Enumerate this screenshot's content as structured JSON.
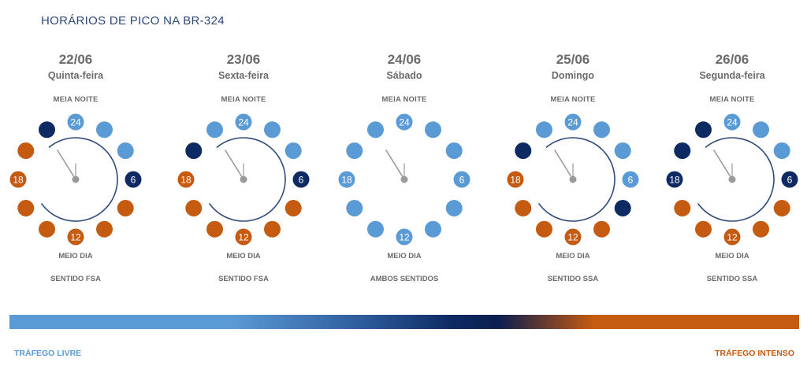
{
  "title": "HORÁRIOS DE PICO NA BR-324",
  "colors": {
    "light": "#5b9bd5",
    "dark": "#0e2a63",
    "orange": "#c55a11",
    "hand": "#9a9a9a",
    "arc": "#2e4a7a"
  },
  "labels": {
    "midnight": "MEIA NOITE",
    "noon": "MEIO DIA",
    "free_traffic": "TRÁFEGO LIVRE",
    "heavy_traffic": "TRÁFEGO INTENSO"
  },
  "hour_labels": [
    "24",
    "6",
    "12",
    "18"
  ],
  "days": [
    {
      "date": "22/06",
      "weekday": "Quinta-feira",
      "direction": "SENTIDO FSA",
      "dots": [
        "light",
        "light",
        "light",
        "dark",
        "orange",
        "orange",
        "orange",
        "orange",
        "orange",
        "orange",
        "orange",
        "dark"
      ],
      "has_arc": true
    },
    {
      "date": "23/06",
      "weekday": "Sexta-feira",
      "direction": "SENTIDO FSA",
      "dots": [
        "light",
        "light",
        "light",
        "dark",
        "orange",
        "orange",
        "orange",
        "orange",
        "orange",
        "orange",
        "dark",
        "light"
      ],
      "has_arc": true
    },
    {
      "date": "24/06",
      "weekday": "Sábado",
      "direction": "AMBOS SENTIDOS",
      "dots": [
        "light",
        "light",
        "light",
        "light",
        "light",
        "light",
        "light",
        "light",
        "light",
        "light",
        "light",
        "light"
      ],
      "has_arc": false
    },
    {
      "date": "25/06",
      "weekday": "Domingo",
      "direction": "SENTIDO SSA",
      "dots": [
        "light",
        "light",
        "light",
        "light",
        "dark",
        "orange",
        "orange",
        "orange",
        "orange",
        "orange",
        "dark",
        "light"
      ],
      "has_arc": true
    },
    {
      "date": "26/06",
      "weekday": "Segunda-feira",
      "direction": "SENTIDO SSA",
      "dots": [
        "light",
        "light",
        "light",
        "dark",
        "orange",
        "orange",
        "orange",
        "orange",
        "orange",
        "dark",
        "dark",
        "dark"
      ],
      "has_arc": true
    }
  ]
}
